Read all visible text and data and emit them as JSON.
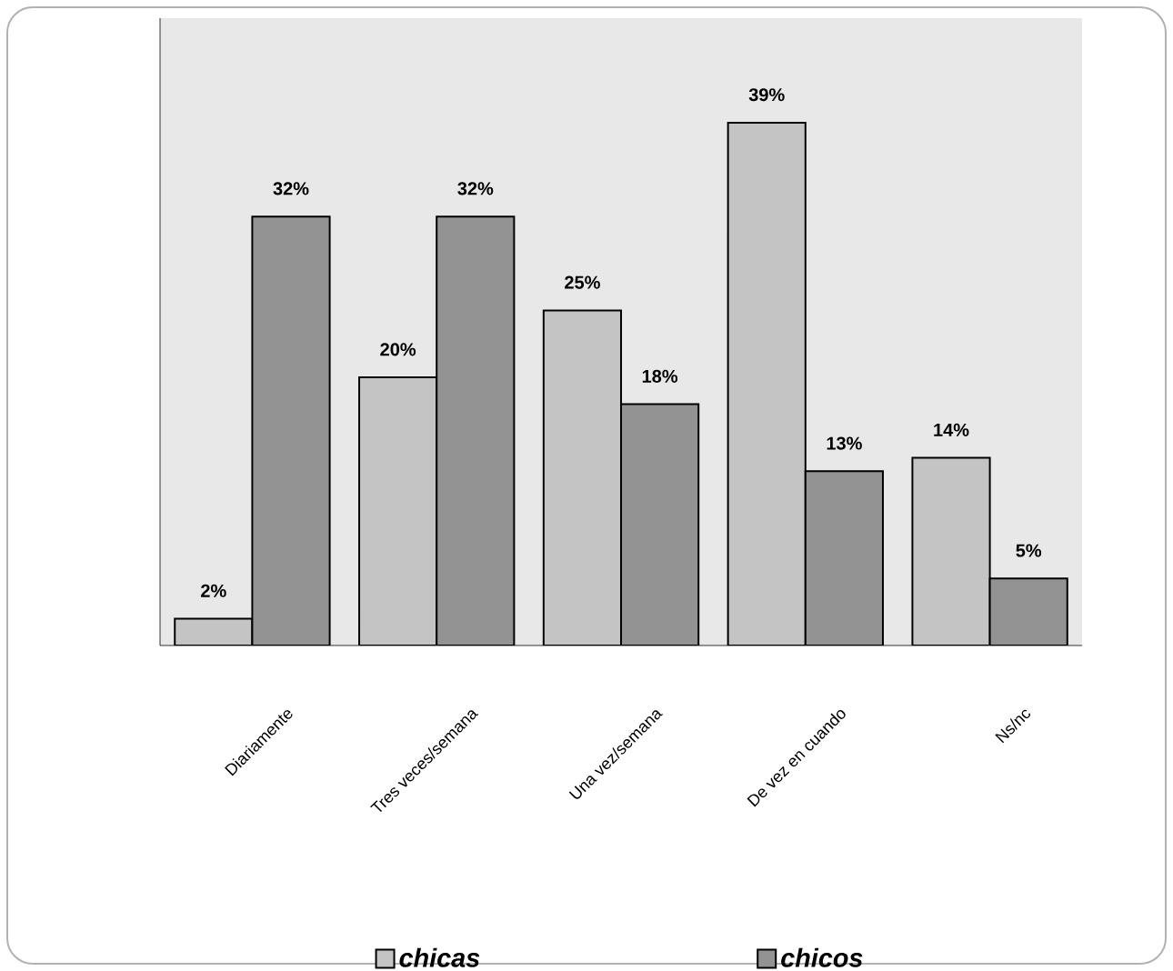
{
  "chart_data": {
    "type": "bar",
    "categories": [
      "Diariamente",
      "Tres veces/semana",
      "Una vez/semana",
      "De vez en cuando",
      "Ns/nc"
    ],
    "series": [
      {
        "name": "chicas",
        "color": "#c4c4c4",
        "values": [
          2,
          20,
          25,
          39,
          14
        ],
        "value_labels": [
          "2%",
          "20%",
          "25%",
          "39%",
          "14%"
        ]
      },
      {
        "name": "chicos",
        "color": "#939393",
        "values": [
          32,
          32,
          18,
          13,
          5
        ],
        "value_labels": [
          "32%",
          "32%",
          "18%",
          "13%",
          "5%"
        ]
      }
    ],
    "legend": "bottom",
    "grid": false
  }
}
